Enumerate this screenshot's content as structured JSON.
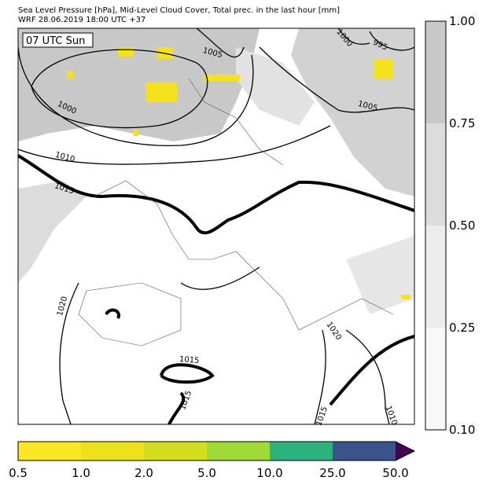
{
  "header": {
    "title_lines": [
      "Sea Level Pressure [hPa], Mid-Level Cloud Cover, Total prec. in the last hour [mm]",
      "WRF 28.06.2019 18:00 UTC +37"
    ]
  },
  "map": {
    "time_label": "07 UTC Sun",
    "contour_labels": [
      "1005",
      "995",
      "1000",
      "1000",
      "1005",
      "1010",
      "1015",
      "1020",
      "1015",
      "1020",
      "1015",
      "1015",
      "1010"
    ]
  },
  "cloud_colorbar": {
    "tick_labels": [
      "1.00",
      "0.75",
      "0.50",
      "0.25",
      "0.10"
    ]
  },
  "precip_colorbar": {
    "tick_labels": [
      "0.5",
      "1.0",
      "2.0",
      "5.0",
      "10.0",
      "25.0",
      "50.0"
    ]
  }
}
